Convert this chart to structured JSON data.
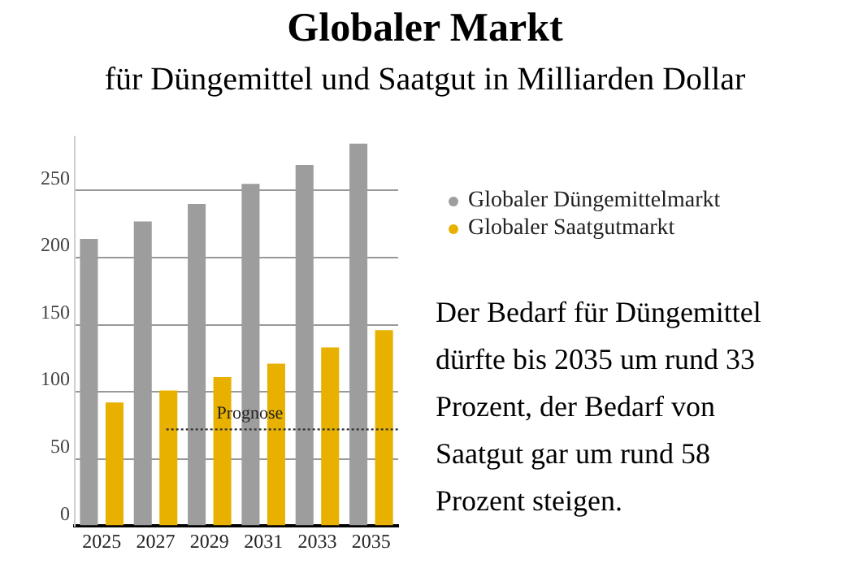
{
  "chart_data": {
    "type": "bar",
    "title": "Globaler Markt",
    "subtitle": "für Düngemittel und Saatgut in Milliarden Dollar",
    "categories": [
      "2025",
      "2027",
      "2029",
      "2031",
      "2033",
      "2035"
    ],
    "series": [
      {
        "name": "Globaler Düngemittelmarkt",
        "color": "#9d9d9d",
        "values": [
          214,
          227,
          240,
          255,
          269,
          285
        ]
      },
      {
        "name": "Globaler Saatgutmarkt",
        "color": "#e8b100",
        "values": [
          92,
          101,
          111,
          121,
          133,
          146
        ]
      }
    ],
    "ylim": [
      0,
      290
    ],
    "yticks": [
      0,
      50,
      100,
      150,
      200,
      250
    ],
    "grid": "y",
    "legend": "right",
    "ref_lines": [
      {
        "axis": "y",
        "value": 72,
        "label": "Prognose",
        "line_style": "dotted",
        "color": "#333333"
      }
    ],
    "annotations": [
      "Der Bedarf für Düngemittel dürfte bis 2035 um rund 33 Prozent, der Bedarf von Saatgut gar um rund 58 Prozent steigen."
    ]
  }
}
